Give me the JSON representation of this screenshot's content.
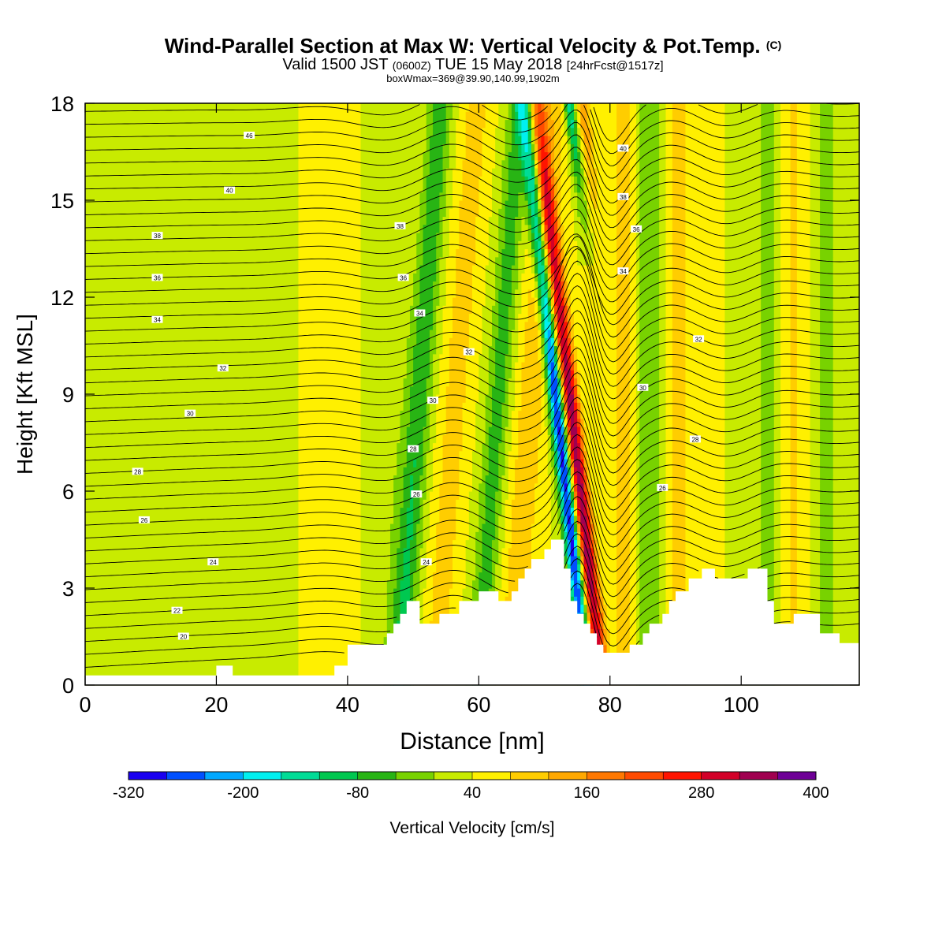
{
  "title": {
    "main": "Wind-Parallel Section at Max W: Vertical Velocity & Pot.Temp.",
    "main_suffix": "(C)",
    "valid_prefix": "Valid 1500 JST",
    "valid_utc": "(0600Z)",
    "valid_date": "TUE 15 May 2018",
    "valid_fcst": "[24hrFcst@1517z]",
    "box_line": "boxWmax=369@39.90,140.99,1902m"
  },
  "chart_data": {
    "type": "heatmap",
    "xlabel": "Distance [nm]",
    "ylabel": "Height [Kft MSL]",
    "xlim": [
      0,
      118
    ],
    "ylim": [
      0,
      18
    ],
    "xticks": [
      0,
      20,
      40,
      60,
      80,
      100
    ],
    "yticks": [
      0,
      3,
      6,
      9,
      12,
      15,
      18
    ],
    "colorbar": {
      "label": "Vertical Velocity [cm/s]",
      "levels": [
        -320,
        -280,
        -240,
        -200,
        -160,
        -120,
        -80,
        -40,
        0,
        40,
        80,
        120,
        160,
        200,
        240,
        280,
        320,
        360,
        400
      ],
      "tick_labels": [
        "-320",
        "-200",
        "-80",
        "40",
        "160",
        "280",
        "400"
      ],
      "tick_values": [
        -320,
        -200,
        -80,
        40,
        160,
        280,
        400
      ],
      "colors": [
        "#1a00f0",
        "#0050ff",
        "#00a8ff",
        "#00f0f0",
        "#00dc96",
        "#00c850",
        "#28b414",
        "#78d200",
        "#c8eb00",
        "#fff000",
        "#ffcd00",
        "#ffa800",
        "#ff7800",
        "#ff4b00",
        "#ff1400",
        "#d20028",
        "#a00050",
        "#6e0096"
      ]
    },
    "terrain_kft": [
      [
        0,
        0.3
      ],
      [
        20,
        0.3
      ],
      [
        20,
        0.6
      ],
      [
        22.5,
        0.6
      ],
      [
        22.5,
        0.3
      ],
      [
        38,
        0.3
      ],
      [
        38,
        0.6
      ],
      [
        40,
        0.6
      ],
      [
        40,
        1.25
      ],
      [
        46,
        1.25
      ],
      [
        46,
        1.6
      ],
      [
        47,
        1.6
      ],
      [
        47,
        1.9
      ],
      [
        48,
        1.9
      ],
      [
        48,
        2.2
      ],
      [
        49,
        2.2
      ],
      [
        49,
        2.6
      ],
      [
        51,
        2.6
      ],
      [
        51,
        1.9
      ],
      [
        54,
        1.9
      ],
      [
        54,
        2.2
      ],
      [
        57,
        2.2
      ],
      [
        57,
        2.6
      ],
      [
        60,
        2.6
      ],
      [
        60,
        2.9
      ],
      [
        63,
        2.9
      ],
      [
        63,
        2.6
      ],
      [
        65,
        2.6
      ],
      [
        65,
        2.9
      ],
      [
        66,
        2.9
      ],
      [
        66,
        3.3
      ],
      [
        67,
        3.3
      ],
      [
        67,
        3.6
      ],
      [
        68,
        3.6
      ],
      [
        68,
        3.9
      ],
      [
        70,
        3.9
      ],
      [
        70,
        4.2
      ],
      [
        71,
        4.2
      ],
      [
        71,
        4.5
      ],
      [
        73,
        4.5
      ],
      [
        73,
        3.6
      ],
      [
        74,
        3.6
      ],
      [
        74,
        2.6
      ],
      [
        75,
        2.6
      ],
      [
        75,
        2.2
      ],
      [
        76,
        2.2
      ],
      [
        76,
        1.9
      ],
      [
        77,
        1.9
      ],
      [
        77,
        1.6
      ],
      [
        78,
        1.6
      ],
      [
        78,
        1.25
      ],
      [
        79,
        1.25
      ],
      [
        79,
        1.0
      ],
      [
        83,
        1.0
      ],
      [
        83,
        1.25
      ],
      [
        85,
        1.25
      ],
      [
        85,
        1.6
      ],
      [
        86,
        1.6
      ],
      [
        86,
        1.9
      ],
      [
        88,
        1.9
      ],
      [
        88,
        2.2
      ],
      [
        89,
        2.2
      ],
      [
        89,
        2.6
      ],
      [
        90,
        2.6
      ],
      [
        90,
        2.9
      ],
      [
        92,
        2.9
      ],
      [
        92,
        3.3
      ],
      [
        94,
        3.3
      ],
      [
        94,
        3.6
      ],
      [
        96,
        3.6
      ],
      [
        96,
        3.3
      ],
      [
        101,
        3.3
      ],
      [
        101,
        3.6
      ],
      [
        104,
        3.6
      ],
      [
        104,
        2.6
      ],
      [
        105,
        2.6
      ],
      [
        105,
        1.9
      ],
      [
        108,
        1.9
      ],
      [
        108,
        2.2
      ],
      [
        112,
        2.2
      ],
      [
        112,
        1.6
      ],
      [
        115,
        1.6
      ],
      [
        115,
        1.3
      ],
      [
        118,
        1.3
      ]
    ],
    "theta_label_values": [
      "46",
      "40",
      "38",
      "36",
      "34",
      "32",
      "30",
      "28",
      "26",
      "24",
      "22",
      "20",
      "38",
      "36",
      "34",
      "32",
      "30",
      "28",
      "26",
      "24",
      "40",
      "38",
      "36",
      "34",
      "32",
      "30",
      "28",
      "26"
    ]
  }
}
